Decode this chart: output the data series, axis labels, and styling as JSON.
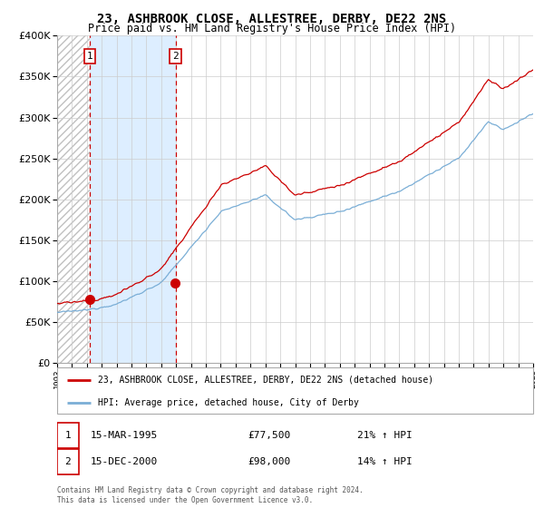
{
  "title": "23, ASHBROOK CLOSE, ALLESTREE, DERBY, DE22 2NS",
  "subtitle": "Price paid vs. HM Land Registry's House Price Index (HPI)",
  "legend_line1": "23, ASHBROOK CLOSE, ALLESTREE, DERBY, DE22 2NS (detached house)",
  "legend_line2": "HPI: Average price, detached house, City of Derby",
  "transaction1_date": "15-MAR-1995",
  "transaction1_price": 77500,
  "transaction1_hpi": "21% ↑ HPI",
  "transaction2_date": "15-DEC-2000",
  "transaction2_price": 98000,
  "transaction2_hpi": "14% ↑ HPI",
  "footer": "Contains HM Land Registry data © Crown copyright and database right 2024.\nThis data is licensed under the Open Government Licence v3.0.",
  "ylim": [
    0,
    400000
  ],
  "yticks": [
    0,
    50000,
    100000,
    150000,
    200000,
    250000,
    300000,
    350000,
    400000
  ],
  "line_color_red": "#cc0000",
  "line_color_blue": "#7aaed6",
  "dot_color": "#cc0000",
  "shade_color": "#ddeeff",
  "dashed_color": "#cc0000",
  "bg_color": "#ffffff",
  "grid_color": "#cccccc",
  "transaction1_year": 1995.21,
  "transaction2_year": 2000.96,
  "xlim_start": 1993,
  "xlim_end": 2025
}
